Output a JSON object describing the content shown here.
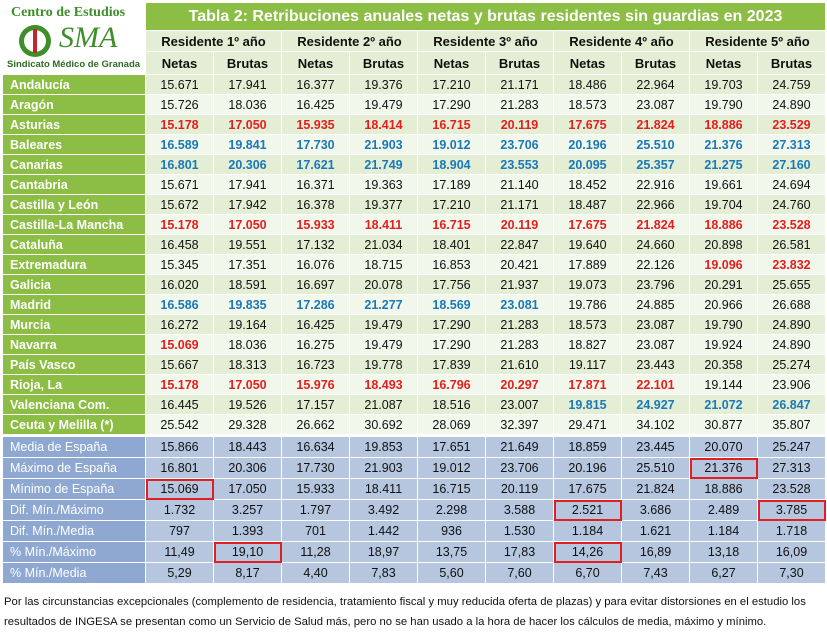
{
  "logo": {
    "top": "Centro de Estudios",
    "acronym": "SMA",
    "bottom": "Sindicato Médico de Granada"
  },
  "title": "Tabla 2: Retribuciones anuales netas y brutas residentes sin guardias en 2023",
  "groups": [
    "Residente 1º año",
    "Residente 2º año",
    "Residente 3º año",
    "Residente 4º año",
    "Residente 5º año"
  ],
  "subheaders": [
    "Netas",
    "Brutas",
    "Netas",
    "Brutas",
    "Netas",
    "Brutas",
    "Netas",
    "Brutas",
    "Netas",
    "Brutas"
  ],
  "highlight_colors": {
    "red": "#e41e1e",
    "blue": "#1b78b8"
  },
  "rows": [
    {
      "label": "Andalucía",
      "values": [
        "15.671",
        "17.941",
        "16.377",
        "19.376",
        "17.210",
        "21.171",
        "18.486",
        "22.964",
        "19.703",
        "24.759"
      ]
    },
    {
      "label": "Aragón",
      "values": [
        "15.726",
        "18.036",
        "16.425",
        "19.479",
        "17.290",
        "21.283",
        "18.573",
        "23.087",
        "19.790",
        "24.890"
      ]
    },
    {
      "label": "Asturias",
      "values": [
        "15.178",
        "17.050",
        "15.935",
        "18.414",
        "16.715",
        "20.119",
        "17.675",
        "21.824",
        "18.886",
        "23.529"
      ],
      "highlight": [
        "red",
        "red",
        "red",
        "red",
        "red",
        "red",
        "red",
        "red",
        "red",
        "red"
      ]
    },
    {
      "label": "Baleares",
      "values": [
        "16.589",
        "19.841",
        "17.730",
        "21.903",
        "19.012",
        "23.706",
        "20.196",
        "25.510",
        "21.376",
        "27.313"
      ],
      "highlight": [
        "blue",
        "blue",
        "blue",
        "blue",
        "blue",
        "blue",
        "blue",
        "blue",
        "blue",
        "blue"
      ]
    },
    {
      "label": "Canarias",
      "values": [
        "16.801",
        "20.306",
        "17.621",
        "21.749",
        "18.904",
        "23.553",
        "20.095",
        "25.357",
        "21.275",
        "27.160"
      ],
      "highlight": [
        "blue",
        "blue",
        "blue",
        "blue",
        "blue",
        "blue",
        "blue",
        "blue",
        "blue",
        "blue"
      ]
    },
    {
      "label": "Cantabria",
      "values": [
        "15.671",
        "17.941",
        "16.371",
        "19.363",
        "17.189",
        "21.140",
        "18.452",
        "22.916",
        "19.661",
        "24.694"
      ]
    },
    {
      "label": "Castilla y León",
      "values": [
        "15.672",
        "17.942",
        "16.378",
        "19.377",
        "17.210",
        "21.171",
        "18.487",
        "22.966",
        "19.704",
        "24.760"
      ]
    },
    {
      "label": "Castilla-La Mancha",
      "values": [
        "15.178",
        "17.050",
        "15.933",
        "18.411",
        "16.715",
        "20.119",
        "17.675",
        "21.824",
        "18.886",
        "23.528"
      ],
      "highlight": [
        "red",
        "red",
        "red",
        "red",
        "red",
        "red",
        "red",
        "red",
        "red",
        "red"
      ]
    },
    {
      "label": "Cataluña",
      "values": [
        "16.458",
        "19.551",
        "17.132",
        "21.034",
        "18.401",
        "22.847",
        "19.640",
        "24.660",
        "20.898",
        "26.581"
      ]
    },
    {
      "label": "Extremadura",
      "values": [
        "15.345",
        "17.351",
        "16.076",
        "18.715",
        "16.853",
        "20.421",
        "17.889",
        "22.126",
        "19.096",
        "23.832"
      ],
      "highlight": [
        null,
        null,
        null,
        null,
        null,
        null,
        null,
        null,
        "red",
        "red"
      ]
    },
    {
      "label": "Galicia",
      "values": [
        "16.020",
        "18.591",
        "16.697",
        "20.078",
        "17.756",
        "21.937",
        "19.073",
        "23.796",
        "20.291",
        "25.655"
      ]
    },
    {
      "label": "Madrid",
      "values": [
        "16.586",
        "19.835",
        "17.286",
        "21.277",
        "18.569",
        "23.081",
        "19.786",
        "24.885",
        "20.966",
        "26.688"
      ],
      "highlight": [
        "blue",
        "blue",
        "blue",
        "blue",
        "blue",
        "blue",
        null,
        null,
        null,
        null
      ]
    },
    {
      "label": "Murcia",
      "values": [
        "16.272",
        "19.164",
        "16.425",
        "19.479",
        "17.290",
        "21.283",
        "18.573",
        "23.087",
        "19.790",
        "24.890"
      ]
    },
    {
      "label": "Navarra",
      "values": [
        "15.069",
        "18.036",
        "16.275",
        "19.479",
        "17.290",
        "21.283",
        "18.827",
        "23.087",
        "19.924",
        "24.890"
      ],
      "highlight": [
        "red",
        null,
        null,
        null,
        null,
        null,
        null,
        null,
        null,
        null
      ]
    },
    {
      "label": "País Vasco",
      "values": [
        "15.667",
        "18.313",
        "16.723",
        "19.778",
        "17.839",
        "21.610",
        "19.117",
        "23.443",
        "20.358",
        "25.274"
      ]
    },
    {
      "label": "Rioja, La",
      "values": [
        "15.178",
        "17.050",
        "15.976",
        "18.493",
        "16.796",
        "20.297",
        "17.871",
        "22.101",
        "19.144",
        "23.906"
      ],
      "highlight": [
        "red",
        "red",
        "red",
        "red",
        "red",
        "red",
        "red",
        "red",
        null,
        null
      ]
    },
    {
      "label": "Valenciana Com.",
      "values": [
        "16.445",
        "19.526",
        "17.157",
        "21.087",
        "18.516",
        "23.007",
        "19.815",
        "24.927",
        "21.072",
        "26.847"
      ],
      "highlight": [
        null,
        null,
        null,
        null,
        null,
        null,
        "blue",
        "blue",
        "blue",
        "blue"
      ]
    },
    {
      "label": "Ceuta y Melilla (*)",
      "values": [
        "25.542",
        "29.328",
        "26.662",
        "30.692",
        "28.069",
        "32.397",
        "29.471",
        "34.102",
        "30.877",
        "35.807"
      ]
    }
  ],
  "summary_rows": [
    {
      "label": "Media de España",
      "values": [
        "15.866",
        "18.443",
        "16.634",
        "19.853",
        "17.651",
        "21.649",
        "18.859",
        "23.445",
        "20.070",
        "25.247"
      ]
    },
    {
      "label": "Máximo de España",
      "values": [
        "16.801",
        "20.306",
        "17.730",
        "21.903",
        "19.012",
        "23.706",
        "20.196",
        "25.510",
        "21.376",
        "27.313"
      ],
      "boxed": [
        8
      ]
    },
    {
      "label": "Mínimo de España",
      "values": [
        "15.069",
        "17.050",
        "15.933",
        "18.411",
        "16.715",
        "20.119",
        "17.675",
        "21.824",
        "18.886",
        "23.528"
      ],
      "boxed": [
        0
      ]
    },
    {
      "label": "Dif. Mín./Máximo",
      "values": [
        "1.732",
        "3.257",
        "1.797",
        "3.492",
        "2.298",
        "3.588",
        "2.521",
        "3.686",
        "2.489",
        "3.785"
      ],
      "boxed": [
        6,
        9
      ]
    },
    {
      "label": "Dif. Mín./Media",
      "values": [
        "797",
        "1.393",
        "701",
        "1.442",
        "936",
        "1.530",
        "1.184",
        "1.621",
        "1.184",
        "1.718"
      ]
    },
    {
      "label": "% Mín./Máximo",
      "values": [
        "11,49",
        "19,10",
        "11,28",
        "18,97",
        "13,75",
        "17,83",
        "14,26",
        "16,89",
        "13,18",
        "16,09"
      ],
      "boxed": [
        1,
        6
      ]
    },
    {
      "label": "% Mín./Media",
      "values": [
        "5,29",
        "8,17",
        "4,40",
        "7,83",
        "5,60",
        "7,60",
        "6,70",
        "7,43",
        "6,27",
        "7,30"
      ]
    }
  ],
  "footnote": "Por las circunstancias excepcionales (complemento de residencia, tratamiento fiscal y muy reducida oferta de plazas) y para evitar distorsiones en el estudio los resultados de INGESA se presentan como un Servicio de Salud más, pero no se han usado a la hora de hacer los cálculos de media, máximo y mínimo."
}
